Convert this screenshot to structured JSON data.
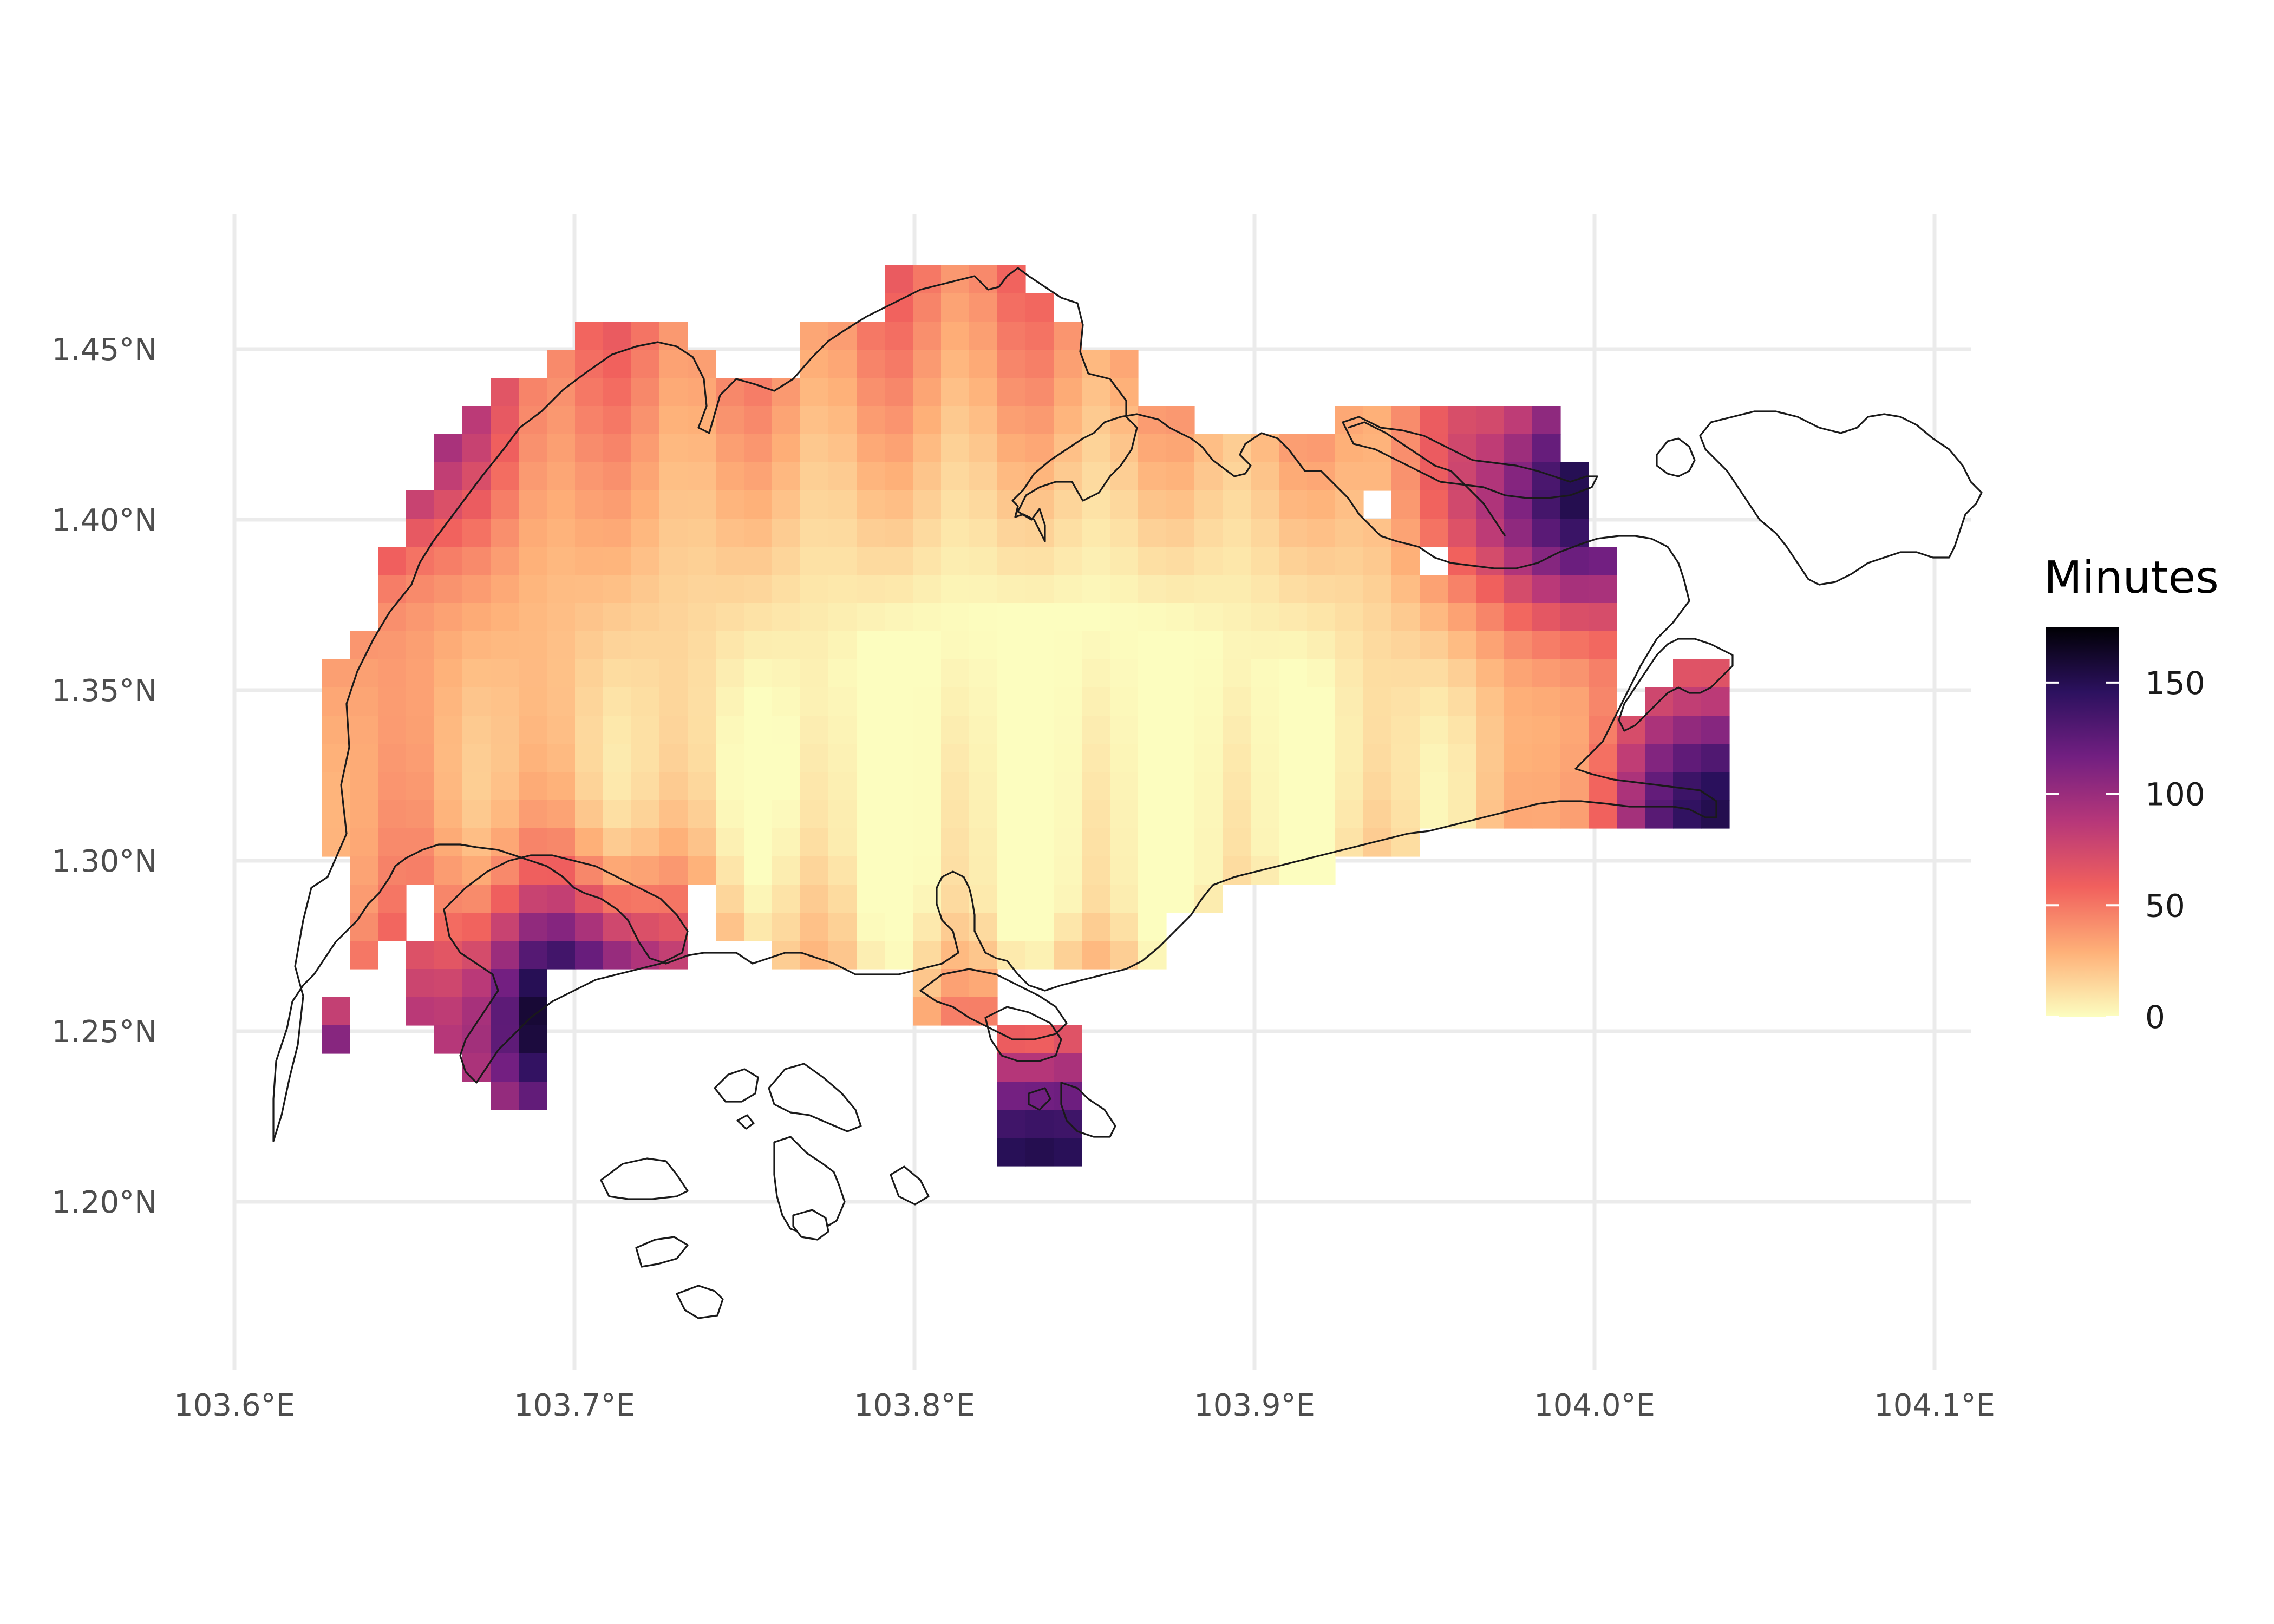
{
  "chart_data": {
    "type": "heatmap",
    "title": "",
    "xlabel": "",
    "ylabel": "",
    "xlim": [
      103.585,
      104.1
    ],
    "ylim": [
      1.15,
      1.485
    ],
    "x_ticks": [
      {
        "value": 103.6,
        "label": "103.6°E"
      },
      {
        "value": 103.7,
        "label": "103.7°E"
      },
      {
        "value": 103.8,
        "label": "103.8°E"
      },
      {
        "value": 103.9,
        "label": "103.9°E"
      },
      {
        "value": 104.0,
        "label": "104.0°E"
      },
      {
        "value": 104.1,
        "label": "104.1°E"
      }
    ],
    "y_ticks": [
      {
        "value": 1.2,
        "label": "1.20°N"
      },
      {
        "value": 1.25,
        "label": "1.25°N"
      },
      {
        "value": 1.3,
        "label": "1.30°N"
      },
      {
        "value": 1.35,
        "label": "1.35°N"
      },
      {
        "value": 1.4,
        "label": "1.40°N"
      },
      {
        "value": 1.45,
        "label": "1.45°N"
      }
    ],
    "grid": true,
    "legend": {
      "title": "Minutes",
      "position": "right",
      "range": [
        0,
        175
      ],
      "ticks": [
        {
          "value": 0,
          "label": "0"
        },
        {
          "value": 50,
          "label": "50"
        },
        {
          "value": 100,
          "label": "100"
        },
        {
          "value": 150,
          "label": "150"
        }
      ],
      "palette": [
        "#fcfdbf",
        "#feb078",
        "#f1605d",
        "#b73779",
        "#721f81",
        "#2c115f",
        "#000004"
      ]
    },
    "cell_size_deg": 0.0084,
    "grid_origin": {
      "lon": 103.6099,
      "lat": 1.2165
    },
    "cells": [
      [
        null,
        null,
        null,
        null,
        null,
        null,
        null,
        null,
        null,
        null,
        null,
        null,
        null,
        null,
        null,
        null,
        null,
        null,
        null,
        null,
        null,
        null,
        null,
        null,
        null,
        null,
        null,
        null,
        null,
        null,
        null,
        null,
        null,
        null,
        null,
        null,
        null,
        null,
        null,
        null,
        null,
        null,
        null,
        null,
        null,
        null,
        null,
        null,
        null,
        null,
        null,
        null,
        null,
        null,
        null,
        null,
        null,
        null,
        null,
        null,
        null,
        null
      ],
      [
        null,
        null,
        null,
        null,
        null,
        null,
        null,
        null,
        null,
        null,
        null,
        null,
        null,
        null,
        null,
        null,
        null,
        null,
        null,
        null,
        null,
        null,
        null,
        null,
        null,
        null,
        null,
        null,
        null,
        null,
        null,
        null,
        null,
        null,
        null,
        null,
        null,
        null,
        null,
        null,
        null,
        null,
        null,
        null,
        null,
        null,
        null,
        null,
        null,
        null,
        null,
        null,
        null,
        null,
        null,
        null,
        null,
        null,
        null,
        null,
        null,
        null
      ]
    ]
  }
}
